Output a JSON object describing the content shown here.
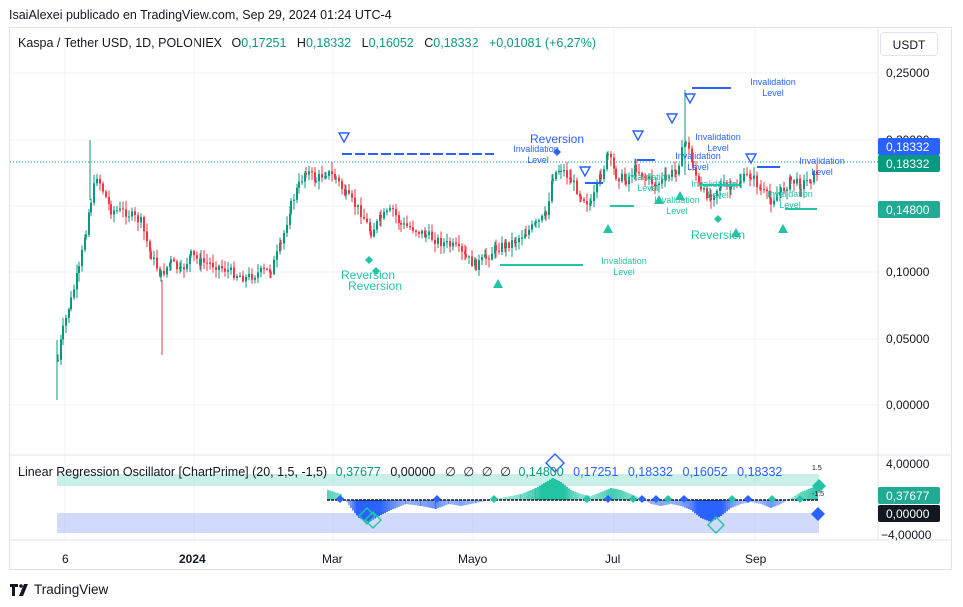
{
  "attribution": "IsaiAlexei publicado en TradingView.com, Sep 29, 2024 01:24 UTC-4",
  "symbol_title": "Kaspa / Tether USD, 1D, POLONIEX",
  "ohlc": {
    "o_label": "O",
    "o": "0,17251",
    "h_label": "H",
    "h": "0,18332",
    "l_label": "L",
    "l": "0,16052",
    "c_label": "C",
    "c": "0,18332",
    "change": "+0,01081 (+6,27%)"
  },
  "currency_button": "USDT",
  "price_axis": {
    "ticks": [
      "0,25000",
      "0,20000",
      "0,10000",
      "0,05000",
      "0,00000"
    ],
    "badges": [
      {
        "text": "0,18332",
        "color": "#2962ff"
      },
      {
        "text": "0,18332",
        "color": "#089981"
      },
      {
        "text": "0,14800",
        "color": "#22ab94"
      }
    ]
  },
  "time_axis": {
    "labels": [
      "6",
      "2024",
      "Mar",
      "Mayo",
      "Jul",
      "Sep"
    ]
  },
  "annotations": {
    "reversion": "Reversion",
    "invalidation_line1": "Invalidation",
    "invalidation_line2": "Level"
  },
  "indicator": {
    "title": "Linear Regression Oscillator [ChartPrime] (20, 1,5, -1,5)",
    "v1": "0,37677",
    "v2": "0,00000",
    "na": "∅",
    "v3": "0,14800",
    "v4": "0,17251",
    "v5": "0,18332",
    "v6": "0,16052",
    "v7": "0,18332",
    "axis_top": "4,00000",
    "axis_bottom": "−4,00000",
    "level_upper": "1.5",
    "level_lower": "-1.5",
    "badge_value": "0,37677",
    "badge_zero": "0,00000"
  },
  "colors": {
    "up": "#089981",
    "down": "#f23645",
    "accent_blue": "#2962ff",
    "teal_signal": "#22c4a4",
    "grid": "#f0f3fa"
  },
  "footer": {
    "brand": "TradingView",
    "logo_icon": "tradingview-logo-icon"
  }
}
